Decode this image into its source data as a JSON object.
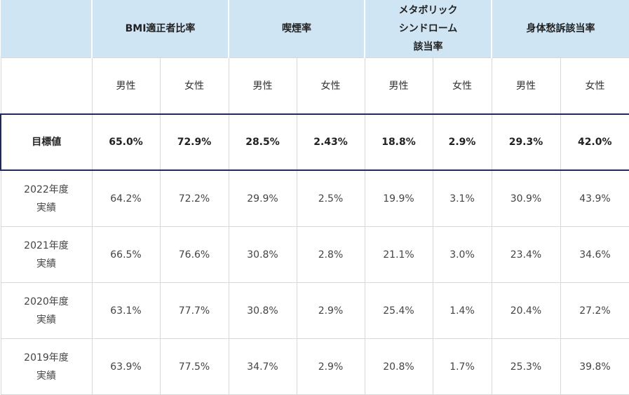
{
  "headers": {
    "bmi": "BMI適正者比率",
    "smoking": "喫煙率",
    "metabolic_line1": "メタボリック",
    "metabolic_line2": "シンドローム",
    "metabolic_line3": "該当率",
    "symptoms": "身体愁訴該当率"
  },
  "sub_headers": {
    "male": "男性",
    "female": "女性"
  },
  "target": {
    "label": "目標値",
    "values": [
      "65.0%",
      "72.9%",
      "28.5%",
      "2.43%",
      "18.8%",
      "2.9%",
      "29.3%",
      "42.0%"
    ]
  },
  "rows": [
    {
      "year": "2022年度",
      "sub": "実績",
      "values": [
        "64.2%",
        "72.2%",
        "29.9%",
        "2.5%",
        "19.9%",
        "3.1%",
        "30.9%",
        "43.9%"
      ]
    },
    {
      "year": "2021年度",
      "sub": "実績",
      "values": [
        "66.5%",
        "76.6%",
        "30.8%",
        "2.8%",
        "21.1%",
        "3.0%",
        "23.4%",
        "34.6%"
      ]
    },
    {
      "year": "2020年度",
      "sub": "実績",
      "values": [
        "63.1%",
        "77.7%",
        "30.8%",
        "2.9%",
        "25.4%",
        "1.4%",
        "20.4%",
        "27.2%"
      ]
    },
    {
      "year": "2019年度",
      "sub": "実績",
      "values": [
        "63.9%",
        "77.5%",
        "34.7%",
        "2.9%",
        "20.8%",
        "1.7%",
        "25.3%",
        "39.8%"
      ]
    }
  ]
}
